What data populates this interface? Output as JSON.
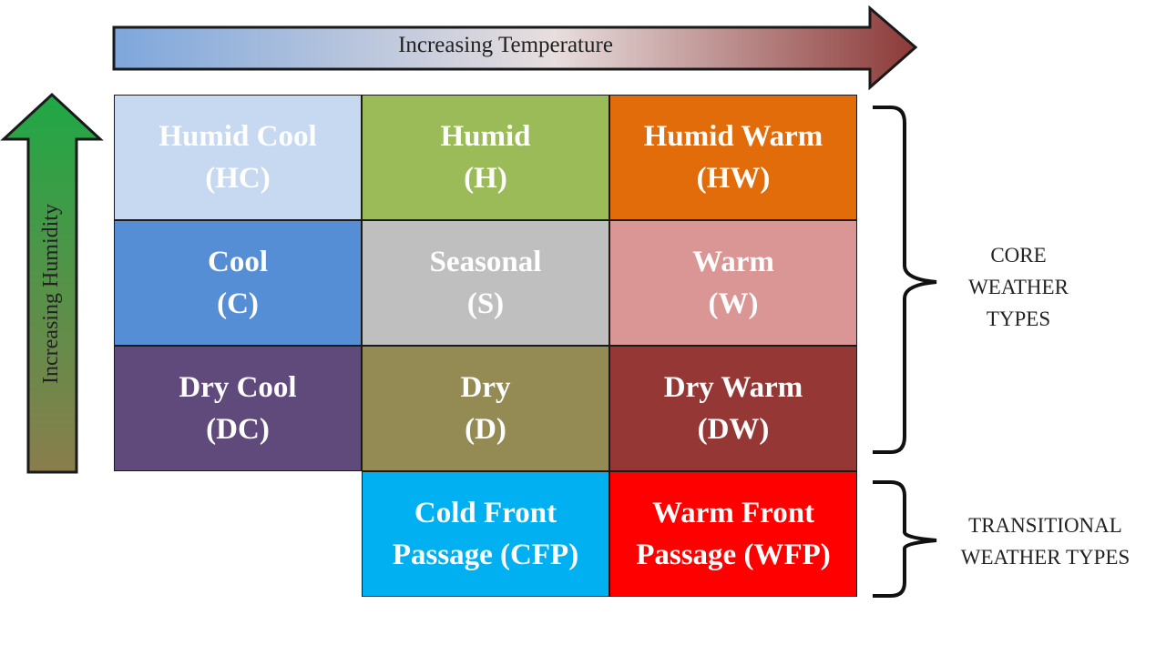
{
  "axes": {
    "temperature_label": "Increasing Temperature",
    "humidity_label": "Increasing Humidity"
  },
  "cells": {
    "hc": {
      "name": "Humid Cool",
      "code": "(HC)",
      "color": "#c6d9f1",
      "text_color": "#ffffff"
    },
    "h": {
      "name": "Humid",
      "code": "(H)",
      "color": "#9bbb59",
      "text_color": "#ffffff"
    },
    "hw": {
      "name": "Humid Warm",
      "code": "(HW)",
      "color": "#e36c0a",
      "text_color": "#ffffff"
    },
    "c": {
      "name": "Cool",
      "code": "(C)",
      "color": "#558ed5",
      "text_color": "#ffffff"
    },
    "s": {
      "name": "Seasonal",
      "code": "(S)",
      "color": "#bfbfbf",
      "text_color": "#ffffff"
    },
    "w": {
      "name": "Warm",
      "code": "(W)",
      "color": "#d99694",
      "text_color": "#ffffff"
    },
    "dc": {
      "name": "Dry Cool",
      "code": "(DC)",
      "color": "#604a7b",
      "text_color": "#ffffff"
    },
    "d": {
      "name": "Dry",
      "code": "(D)",
      "color": "#948a54",
      "text_color": "#ffffff"
    },
    "dw": {
      "name": "Dry Warm",
      "code": "(DW)",
      "color": "#953735",
      "text_color": "#ffffff"
    },
    "cfp": {
      "name": "Cold Front",
      "code": "Passage (CFP)",
      "color": "#00b0f0",
      "text_color": "#ffffff"
    },
    "wfp": {
      "name": "Warm Front",
      "code": "Passage (WFP)",
      "color": "#ff0000",
      "text_color": "#ffffff"
    }
  },
  "groups": {
    "core": {
      "line1": "CORE",
      "line2": "WEATHER",
      "line3": "TYPES"
    },
    "transitional": {
      "line1": "TRANSITIONAL",
      "line2": "WEATHER TYPES"
    }
  },
  "colors": {
    "temp_arrow_start": "#7ea7dc",
    "temp_arrow_end": "#8c3a38",
    "humidity_arrow_top": "#1fa845",
    "humidity_arrow_bottom": "#8a7d4c"
  }
}
